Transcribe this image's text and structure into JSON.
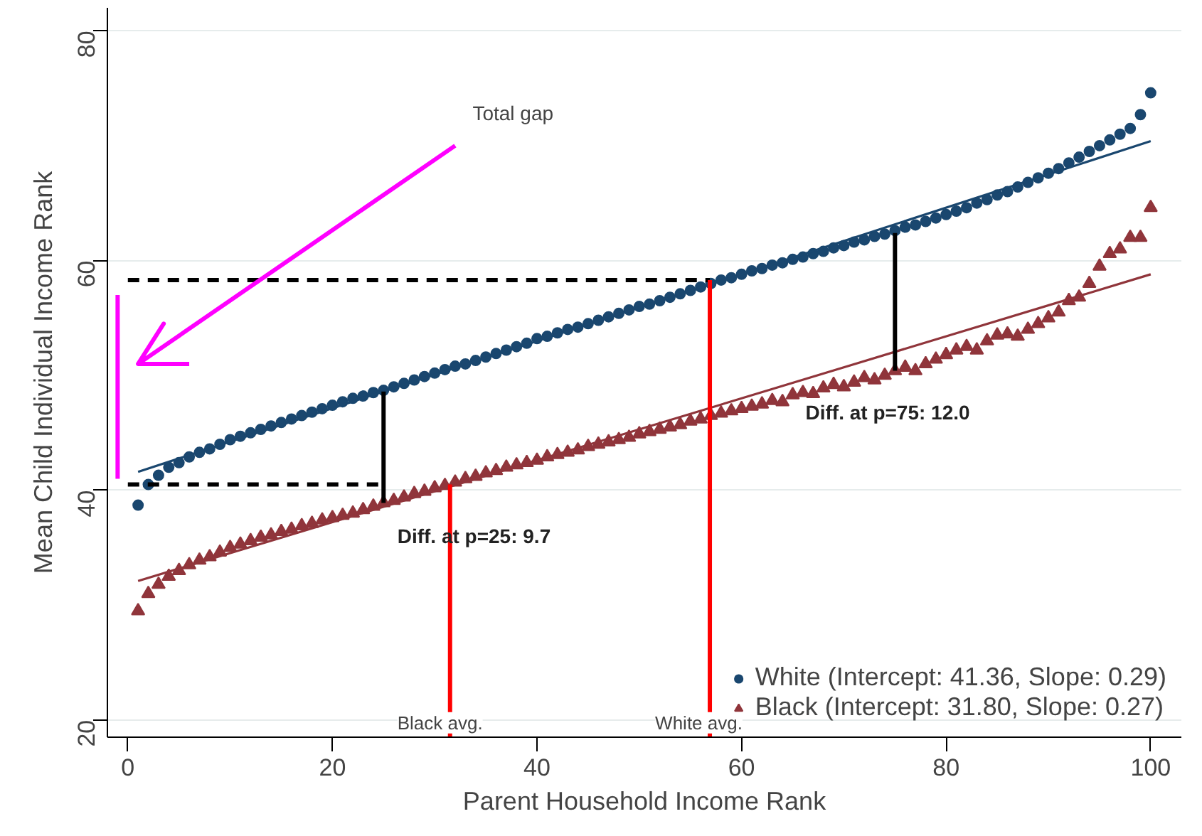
{
  "chart_data": {
    "type": "scatter",
    "xlabel": "Parent Household Income Rank",
    "ylabel": "Mean Child Individual Income Rank",
    "xlim": [
      -2,
      103
    ],
    "ylim": [
      18.5,
      82
    ],
    "xticks": [
      0,
      20,
      40,
      60,
      80,
      100
    ],
    "yticks": [
      20,
      40,
      60,
      80
    ],
    "grid": "y",
    "legend": "bottom right",
    "x": [
      1,
      2,
      3,
      4,
      5,
      6,
      7,
      8,
      9,
      10,
      11,
      12,
      13,
      14,
      15,
      16,
      17,
      18,
      19,
      20,
      21,
      22,
      23,
      24,
      25,
      26,
      27,
      28,
      29,
      30,
      31,
      32,
      33,
      34,
      35,
      36,
      37,
      38,
      39,
      40,
      41,
      42,
      43,
      44,
      45,
      46,
      47,
      48,
      49,
      50,
      51,
      52,
      53,
      54,
      55,
      56,
      57,
      58,
      59,
      60,
      61,
      62,
      63,
      64,
      65,
      66,
      67,
      68,
      69,
      70,
      71,
      72,
      73,
      74,
      75,
      76,
      77,
      78,
      79,
      80,
      81,
      82,
      83,
      84,
      85,
      86,
      87,
      88,
      89,
      90,
      91,
      92,
      93,
      94,
      95,
      96,
      97,
      98,
      99,
      100
    ],
    "series": [
      {
        "name": "White (Intercept: 41.36, Slope: 0.29)",
        "color": "#1a476f",
        "marker": "circle",
        "values": [
          38.7,
          40.5,
          41.3,
          42.0,
          42.4,
          42.9,
          43.3,
          43.6,
          44.0,
          44.4,
          44.7,
          45.0,
          45.3,
          45.6,
          45.9,
          46.2,
          46.5,
          46.8,
          47.1,
          47.4,
          47.7,
          48.0,
          48.2,
          48.5,
          48.7,
          49.0,
          49.3,
          49.6,
          49.9,
          50.2,
          50.5,
          50.8,
          51.0,
          51.3,
          51.6,
          51.9,
          52.2,
          52.5,
          52.8,
          53.2,
          53.4,
          53.7,
          54.0,
          54.2,
          54.5,
          54.8,
          55.1,
          55.4,
          55.7,
          56.0,
          56.2,
          56.5,
          56.8,
          57.1,
          57.4,
          57.7,
          58.0,
          58.3,
          58.5,
          58.8,
          59.1,
          59.3,
          59.6,
          59.8,
          60.1,
          60.3,
          60.6,
          60.8,
          61.1,
          61.3,
          61.6,
          61.8,
          62.1,
          62.3,
          62.6,
          62.9,
          63.1,
          63.4,
          63.7,
          64.0,
          64.3,
          64.6,
          65.0,
          65.3,
          65.7,
          66.0,
          66.4,
          66.8,
          67.2,
          67.6,
          68.0,
          68.5,
          69.0,
          69.5,
          70.0,
          70.5,
          71.0,
          71.5,
          72.7,
          74.6
        ]
      },
      {
        "name": "Black (Intercept: 31.80, Slope: 0.27)",
        "color": "#90353b",
        "marker": "triangle",
        "values": [
          29.5,
          31.0,
          31.8,
          32.5,
          33.0,
          33.5,
          33.9,
          34.2,
          34.6,
          35.0,
          35.3,
          35.6,
          35.9,
          36.1,
          36.4,
          36.6,
          36.9,
          37.1,
          37.4,
          37.6,
          37.8,
          38.0,
          38.3,
          38.6,
          38.9,
          39.1,
          39.4,
          39.7,
          39.9,
          40.2,
          40.4,
          40.7,
          41.0,
          41.2,
          41.5,
          41.7,
          42.0,
          42.2,
          42.4,
          42.6,
          42.9,
          43.1,
          43.3,
          43.5,
          43.8,
          44.0,
          44.2,
          44.4,
          44.6,
          44.9,
          45.1,
          45.3,
          45.5,
          45.7,
          46.0,
          46.2,
          46.5,
          46.7,
          46.9,
          47.1,
          47.3,
          47.5,
          47.8,
          47.7,
          48.3,
          48.5,
          48.4,
          48.9,
          49.2,
          49.0,
          49.4,
          49.8,
          49.6,
          50.0,
          50.4,
          50.7,
          50.4,
          51.0,
          51.4,
          51.8,
          52.2,
          52.5,
          52.2,
          53.0,
          53.5,
          53.6,
          53.4,
          54.0,
          54.5,
          55.0,
          55.5,
          56.5,
          56.8,
          58.0,
          59.5,
          60.6,
          61.0,
          62.0,
          62.0,
          64.6
        ]
      },
      {
        "type": "line",
        "color": "#1a476f",
        "x": [
          1,
          50,
          100
        ],
        "values": [
          41.6,
          55.9,
          70.4
        ],
        "line_style": "solid"
      },
      {
        "type": "line",
        "color": "#90353b",
        "x": [
          1,
          50,
          100
        ],
        "values": [
          32.1,
          45.3,
          58.8
        ],
        "line_style": "solid"
      },
      {
        "type": "line",
        "color": "#000000",
        "x": [
          0,
          56.9
        ],
        "values": [
          58.3,
          58.3
        ],
        "line_style": "dashed"
      },
      {
        "type": "line",
        "color": "#000000",
        "x": [
          0,
          25
        ],
        "values": [
          40.5,
          40.5
        ],
        "line_style": "dashed"
      },
      {
        "type": "line",
        "color": "#ff0000",
        "x": [
          31.5,
          31.5
        ],
        "values": [
          18.5,
          40.5
        ],
        "line_style": "solid"
      },
      {
        "type": "line",
        "color": "#ff0000",
        "x": [
          56.9,
          56.9
        ],
        "values": [
          18.5,
          58.3
        ],
        "line_style": "solid"
      },
      {
        "type": "line",
        "color": "#000000",
        "x": [
          25,
          25
        ],
        "values": [
          38.9,
          48.6
        ],
        "line_style": "solid"
      },
      {
        "type": "line",
        "color": "#000000",
        "x": [
          75,
          75
        ],
        "values": [
          50.4,
          62.4
        ],
        "line_style": "solid"
      },
      {
        "type": "line",
        "color": "#ff00ff",
        "x": [
          -1,
          -1
        ],
        "values": [
          41,
          57
        ],
        "line_style": "solid"
      },
      {
        "type": "line",
        "color": "#ff00ff",
        "x": [
          32,
          1,
          3.5,
          1,
          6
        ],
        "values": [
          70,
          51,
          54.5,
          51,
          51
        ],
        "line_style": "solid"
      }
    ],
    "annotations": [
      "Total gap",
      "Diff. at p=25:  9.7",
      "Diff. at p=75: 12.0",
      "Black avg.",
      "White avg."
    ]
  }
}
